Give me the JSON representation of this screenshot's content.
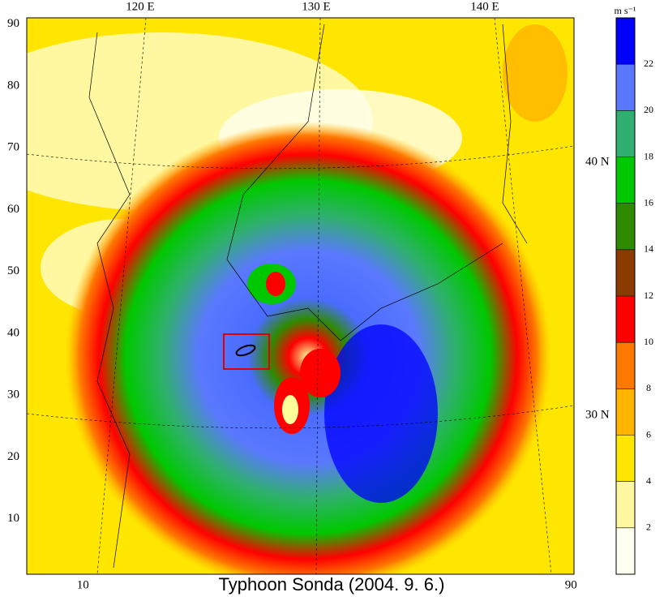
{
  "map": {
    "title": "Typhoon Sonda (2004. 9. 6.)",
    "top_labels": [
      "120 E",
      "130 E",
      "140 E"
    ],
    "right_labels": [
      "40 N",
      "30 N"
    ],
    "left_ticks": [
      10,
      20,
      30,
      40,
      50,
      60,
      70,
      80,
      90
    ],
    "bottom_ticks": [
      10,
      90
    ],
    "colorbar": {
      "unit": "m s⁻¹",
      "ticks": [
        2,
        4,
        6,
        8,
        10,
        12,
        14,
        16,
        18,
        20,
        22
      ],
      "colors": [
        "#fffff0",
        "#fff8a0",
        "#ffe600",
        "#ffb400",
        "#ff7800",
        "#ff0000",
        "#8b3a00",
        "#2e8b00",
        "#00c800",
        "#30b070",
        "#5a78ff",
        "#0000ff"
      ]
    }
  }
}
